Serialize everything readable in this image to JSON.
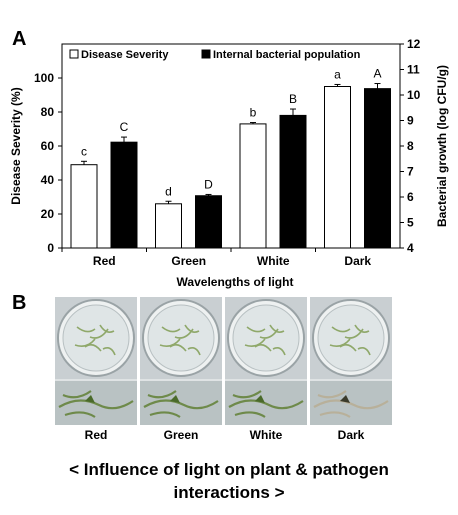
{
  "panel_a_label": "A",
  "panel_b_label": "B",
  "chart_data": {
    "type": "bar",
    "categories": [
      "Red",
      "Green",
      "White",
      "Dark"
    ],
    "xlabel": "Wavelengths of light",
    "ylabel_left": "Disease  Severity (%)",
    "ylabel_right": "Bacterial growth (log CFU/g)",
    "ylim_left": [
      0,
      120
    ],
    "ylim_right": [
      4,
      12
    ],
    "yticks_left": [
      "0",
      "20",
      "40",
      "60",
      "80",
      "100"
    ],
    "yticks_right": [
      "4",
      "5",
      "6",
      "7",
      "8",
      "9",
      "10",
      "11",
      "12"
    ],
    "legend_placement": "top",
    "series": [
      {
        "name": "Disease Severity",
        "axis": "left",
        "color": "#ffffff",
        "values": [
          49,
          26,
          73,
          95
        ],
        "errors": [
          2,
          1.5,
          0.8,
          1.2
        ],
        "letters": [
          "c",
          "d",
          "b",
          "a"
        ]
      },
      {
        "name": "Internal bacterial population",
        "axis": "right",
        "color": "#000000",
        "values": [
          8.15,
          6.05,
          9.2,
          10.25
        ],
        "errors": [
          0.2,
          0.05,
          0.25,
          0.2
        ],
        "letters": [
          "C",
          "D",
          "B",
          "A"
        ]
      }
    ]
  },
  "photo_labels": [
    "Red",
    "Green",
    "White",
    "Dark"
  ],
  "caption_line1": "< Influence of light on plant & pathogen",
  "caption_line2": "interactions >"
}
